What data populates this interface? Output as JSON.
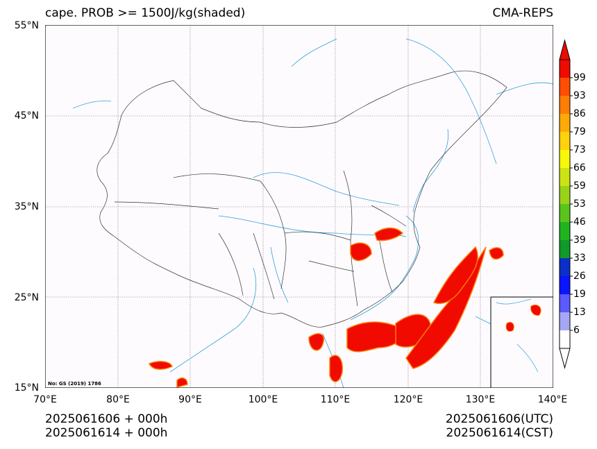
{
  "title_left": "cape. PROB >= 1500J/kg(shaded)",
  "title_right": "CMA-REPS",
  "lat_ticks": [
    "55°N",
    "45°N",
    "35°N",
    "25°N",
    "15°N"
  ],
  "lon_ticks": [
    "70°E",
    "80°E",
    "90°E",
    "100°E",
    "110°E",
    "120°E",
    "130°E",
    "140°E"
  ],
  "map_note": "No: GS (2019) 1786",
  "footer": {
    "left_line1": "2025061606  +  000h",
    "left_line2": "2025061614  +  000h",
    "right_line1": "2025061606(UTC)",
    "right_line2": "2025061614(CST)"
  },
  "colorbar": {
    "levels": [
      "6",
      "13",
      "19",
      "26",
      "33",
      "39",
      "46",
      "53",
      "59",
      "66",
      "73",
      "79",
      "86",
      "93",
      "99"
    ],
    "colors": [
      "#ffffff",
      "#a6a6f5",
      "#5a5aff",
      "#0a14ff",
      "#0b2fc8",
      "#109a2a",
      "#1fb41f",
      "#5ac41c",
      "#9ad21a",
      "#cce414",
      "#f8f80a",
      "#ffd20c",
      "#ffaa08",
      "#ff7d06",
      "#ff4d04",
      "#f00a00"
    ]
  },
  "colors": {
    "prob_high": "#f00a00",
    "border": "#333333",
    "river": "#30a0e0"
  }
}
